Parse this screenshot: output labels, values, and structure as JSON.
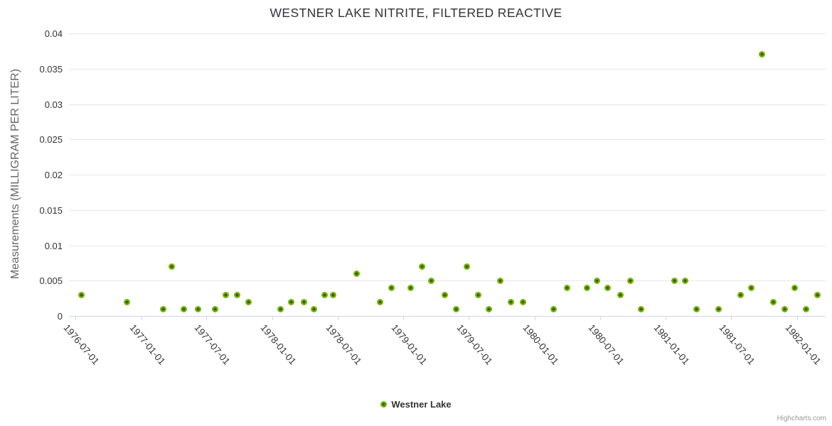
{
  "title": "WESTNER LAKE NITRITE, FILTERED REACTIVE",
  "y_axis": {
    "title": "Measurements (MILLIGRAM PER LITER)",
    "tick_labels": [
      "0",
      "0.005",
      "0.01",
      "0.015",
      "0.02",
      "0.025",
      "0.03",
      "0.035",
      "0.04"
    ]
  },
  "x_axis": {
    "tick_labels": [
      "1976-07-01",
      "1977-01-01",
      "1977-07-01",
      "1978-01-01",
      "1978-07-01",
      "1979-01-01",
      "1979-07-01",
      "1980-01-01",
      "1980-07-01",
      "1981-01-01",
      "1981-07-01",
      "1982-01-01"
    ]
  },
  "legend": {
    "label": "Westner Lake"
  },
  "credits": "Highcharts.com",
  "colors": {
    "marker_fill": "#79b30a",
    "marker_center": "#2f6302",
    "grid": "#e6e6e6",
    "axis_line": "#ccd6eb",
    "title_color": "#32323a",
    "label_color": "#333333",
    "muted_color": "#666666",
    "credits_color": "#999999"
  },
  "chart_data": {
    "type": "scatter",
    "title": "WESTNER LAKE NITRITE, FILTERED REACTIVE",
    "xlabel": "",
    "ylabel": "Measurements (MILLIGRAM PER LITER)",
    "ylim": [
      0,
      0.04
    ],
    "y_tick_interval": 0.005,
    "x_tick_labels": [
      "1976-07-01",
      "1977-01-01",
      "1977-07-01",
      "1978-01-01",
      "1978-07-01",
      "1979-01-01",
      "1979-07-01",
      "1980-01-01",
      "1980-07-01",
      "1981-01-01",
      "1981-07-01",
      "1982-01-01"
    ],
    "grid": "horizontal-only",
    "legend_position": "bottom-center",
    "series": [
      {
        "name": "Westner Lake",
        "data": [
          [
            "1976-07-17",
            0.003
          ],
          [
            "1976-11-22",
            0.002
          ],
          [
            "1977-03-02",
            0.001
          ],
          [
            "1977-03-27",
            0.007
          ],
          [
            "1977-04-30",
            0.001
          ],
          [
            "1977-06-08",
            0.001
          ],
          [
            "1977-07-26",
            0.001
          ],
          [
            "1977-08-23",
            0.003
          ],
          [
            "1977-09-25",
            0.003
          ],
          [
            "1977-10-27",
            0.002
          ],
          [
            "1978-01-24",
            0.001
          ],
          [
            "1978-02-23",
            0.002
          ],
          [
            "1978-03-29",
            0.002
          ],
          [
            "1978-04-27",
            0.001
          ],
          [
            "1978-05-27",
            0.003
          ],
          [
            "1978-06-20",
            0.003
          ],
          [
            "1978-08-24",
            0.006
          ],
          [
            "1978-10-28",
            0.002
          ],
          [
            "1978-11-29",
            0.004
          ],
          [
            "1979-01-20",
            0.004
          ],
          [
            "1979-02-21",
            0.007
          ],
          [
            "1979-03-19",
            0.005
          ],
          [
            "1979-04-26",
            0.003
          ],
          [
            "1979-05-28",
            0.001
          ],
          [
            "1979-06-27",
            0.007
          ],
          [
            "1979-07-29",
            0.003
          ],
          [
            "1979-08-27",
            0.001
          ],
          [
            "1979-09-28",
            0.005
          ],
          [
            "1979-10-28",
            0.002
          ],
          [
            "1979-11-29",
            0.002
          ],
          [
            "1980-02-23",
            0.001
          ],
          [
            "1980-03-31",
            0.004
          ],
          [
            "1980-05-26",
            0.004
          ],
          [
            "1980-06-22",
            0.005
          ],
          [
            "1980-07-23",
            0.004
          ],
          [
            "1980-08-27",
            0.003
          ],
          [
            "1980-09-24",
            0.005
          ],
          [
            "1980-10-24",
            0.001
          ],
          [
            "1981-01-25",
            0.005
          ],
          [
            "1981-02-23",
            0.005
          ],
          [
            "1981-03-27",
            0.001
          ],
          [
            "1981-05-27",
            0.001
          ],
          [
            "1981-07-28",
            0.003
          ],
          [
            "1981-08-27",
            0.004
          ],
          [
            "1981-09-26",
            0.037
          ],
          [
            "1981-10-27",
            0.002
          ],
          [
            "1981-11-28",
            0.001
          ],
          [
            "1981-12-25",
            0.004
          ],
          [
            "1982-01-26",
            0.001
          ],
          [
            "1982-02-27",
            0.003
          ]
        ]
      }
    ]
  }
}
